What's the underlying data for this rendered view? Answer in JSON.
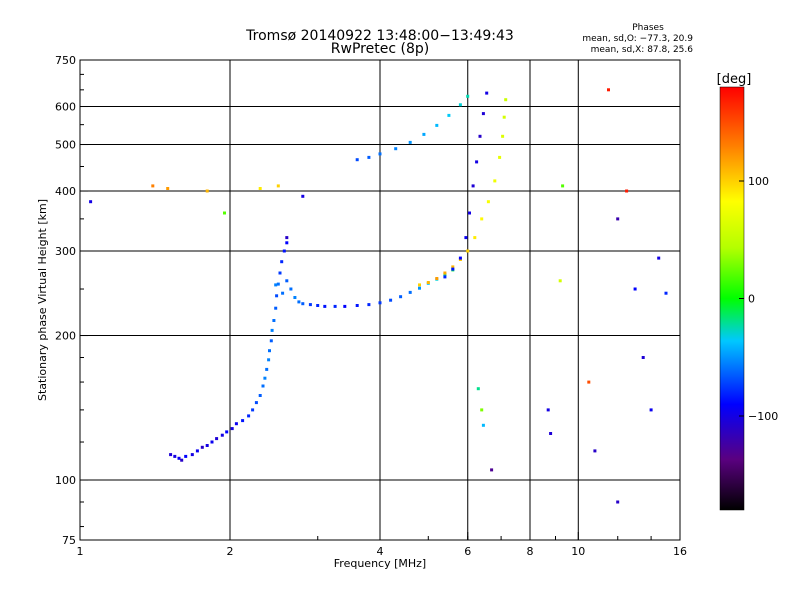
{
  "chart_data": {
    "type": "scatter",
    "title": "Tromsø 20140922 13:48:00−13:49:43",
    "subtitle": "RwPretec (8p)",
    "stats": {
      "heading": "Phases",
      "line1": "mean, sd,O: −77.3, 20.9",
      "line2": "mean, sd,X:  87.8, 25.6"
    },
    "xlabel": "Frequency [MHz]",
    "ylabel": "Stationary phase Virtual Height [km]",
    "x_scale": "log",
    "y_scale": "log",
    "xlim": [
      1,
      16
    ],
    "ylim": [
      75,
      750
    ],
    "grid": true,
    "x_ticks": [
      {
        "v": 1,
        "label": "1"
      },
      {
        "v": 2,
        "label": "2"
      },
      {
        "v": 4,
        "label": "4"
      },
      {
        "v": 6,
        "label": "6"
      },
      {
        "v": 8,
        "label": "8"
      },
      {
        "v": 10,
        "label": "10"
      },
      {
        "v": 16,
        "label": "16"
      }
    ],
    "y_ticks": [
      {
        "v": 75,
        "label": "75"
      },
      {
        "v": 100,
        "label": "100"
      },
      {
        "v": 200,
        "label": "200"
      },
      {
        "v": 300,
        "label": "300"
      },
      {
        "v": 400,
        "label": "400"
      },
      {
        "v": 500,
        "label": "500"
      },
      {
        "v": 600,
        "label": "600"
      },
      {
        "v": 750,
        "label": "750"
      }
    ],
    "colorbar": {
      "label": "[deg]",
      "min": -180,
      "max": 180,
      "ticks": [
        {
          "v": 100,
          "label": "100"
        },
        {
          "v": 0,
          "label": "0"
        },
        {
          "v": -100,
          "label": "−100"
        }
      ]
    },
    "series": [
      {
        "points": [
          [
            1.52,
            113,
            -105
          ],
          [
            1.55,
            112,
            -100
          ],
          [
            1.58,
            111,
            -95
          ],
          [
            1.6,
            110,
            -110
          ],
          [
            1.63,
            112,
            -90
          ],
          [
            1.68,
            113,
            -100
          ],
          [
            1.72,
            115,
            -95
          ],
          [
            1.76,
            117,
            -110
          ],
          [
            1.8,
            118,
            -100
          ],
          [
            1.84,
            120,
            -95
          ],
          [
            1.88,
            122,
            -105
          ],
          [
            1.93,
            124,
            -100
          ],
          [
            1.97,
            126,
            -90
          ],
          [
            2.02,
            128,
            -100
          ],
          [
            2.06,
            131,
            -95
          ],
          [
            2.12,
            133,
            -85
          ],
          [
            2.18,
            136,
            -80
          ],
          [
            2.22,
            140,
            -75
          ],
          [
            2.26,
            145,
            -70
          ],
          [
            2.3,
            150,
            -65
          ],
          [
            2.33,
            157,
            -60
          ],
          [
            2.35,
            163,
            -55
          ],
          [
            2.37,
            170,
            -60
          ],
          [
            2.39,
            178,
            -55
          ],
          [
            2.4,
            186,
            -60
          ],
          [
            2.42,
            195,
            -65
          ],
          [
            2.43,
            205,
            -55
          ],
          [
            2.45,
            215,
            -60
          ],
          [
            2.47,
            228,
            -65
          ],
          [
            2.48,
            242,
            -70
          ],
          [
            2.5,
            256,
            -60
          ],
          [
            2.52,
            270,
            -75
          ],
          [
            2.54,
            285,
            -80
          ],
          [
            2.57,
            300,
            -85
          ],
          [
            2.6,
            312,
            -90
          ],
          [
            2.47,
            255,
            -55
          ],
          [
            2.55,
            245,
            -60
          ],
          [
            2.6,
            260,
            -65
          ],
          [
            2.65,
            250,
            -60
          ],
          [
            2.7,
            240,
            -55
          ],
          [
            2.75,
            235,
            -60
          ],
          [
            2.8,
            233,
            -65
          ],
          [
            2.9,
            232,
            -75
          ],
          [
            3.0,
            231,
            -80
          ],
          [
            3.1,
            230,
            -85
          ],
          [
            3.25,
            230,
            -80
          ],
          [
            3.4,
            230,
            -90
          ],
          [
            3.6,
            231,
            -85
          ],
          [
            3.8,
            232,
            -80
          ],
          [
            4.0,
            234,
            -75
          ],
          [
            4.2,
            237,
            -70
          ],
          [
            4.4,
            241,
            -65
          ],
          [
            4.6,
            246,
            -60
          ],
          [
            4.8,
            251,
            -50
          ],
          [
            5.0,
            257,
            -40
          ],
          [
            5.2,
            262,
            -30
          ],
          [
            5.4,
            268,
            -20
          ],
          [
            5.6,
            274,
            -10
          ],
          [
            4.8,
            255,
            100
          ],
          [
            5.0,
            258,
            110
          ],
          [
            5.2,
            263,
            120
          ],
          [
            5.4,
            270,
            115
          ],
          [
            5.6,
            278,
            110
          ],
          [
            5.8,
            288,
            105
          ],
          [
            6.0,
            300,
            100
          ],
          [
            6.2,
            320,
            90
          ],
          [
            6.4,
            350,
            85
          ],
          [
            6.6,
            380,
            80
          ],
          [
            6.8,
            420,
            75
          ],
          [
            6.95,
            470,
            70
          ],
          [
            7.05,
            520,
            65
          ],
          [
            7.1,
            570,
            60
          ],
          [
            7.15,
            620,
            55
          ],
          [
            5.4,
            265,
            -80
          ],
          [
            5.6,
            275,
            -85
          ],
          [
            5.8,
            290,
            -90
          ],
          [
            5.95,
            320,
            -95
          ],
          [
            6.05,
            360,
            -100
          ],
          [
            6.15,
            410,
            -105
          ],
          [
            6.25,
            460,
            -100
          ],
          [
            6.35,
            520,
            -110
          ],
          [
            6.45,
            580,
            -105
          ],
          [
            6.55,
            640,
            -100
          ],
          [
            3.6,
            465,
            -70
          ],
          [
            3.8,
            470,
            -65
          ],
          [
            4.0,
            478,
            -60
          ],
          [
            4.3,
            490,
            -55
          ],
          [
            4.6,
            505,
            -50
          ],
          [
            4.9,
            525,
            -45
          ],
          [
            5.2,
            548,
            -40
          ],
          [
            5.5,
            575,
            -35
          ],
          [
            5.8,
            605,
            -30
          ],
          [
            6.0,
            630,
            -25
          ],
          [
            1.05,
            380,
            -100
          ],
          [
            1.4,
            410,
            130
          ],
          [
            1.5,
            405,
            120
          ],
          [
            1.8,
            400,
            110
          ],
          [
            2.3,
            405,
            90
          ],
          [
            2.5,
            410,
            100
          ],
          [
            1.95,
            360,
            20
          ],
          [
            2.6,
            320,
            -110
          ],
          [
            2.8,
            390,
            -100
          ],
          [
            8.7,
            140,
            -100
          ],
          [
            8.8,
            125,
            -105
          ],
          [
            9.2,
            260,
            60
          ],
          [
            9.3,
            410,
            20
          ],
          [
            10.5,
            160,
            150
          ],
          [
            10.8,
            115,
            -110
          ],
          [
            11.5,
            650,
            170
          ],
          [
            12.0,
            350,
            -120
          ],
          [
            12.5,
            400,
            170
          ],
          [
            13.0,
            250,
            -90
          ],
          [
            13.5,
            180,
            -105
          ],
          [
            14.0,
            140,
            -95
          ],
          [
            14.5,
            290,
            -100
          ],
          [
            15.0,
            245,
            -80
          ],
          [
            12.0,
            90,
            -110
          ],
          [
            6.3,
            155,
            -20
          ],
          [
            6.4,
            140,
            30
          ],
          [
            6.7,
            105,
            -130
          ],
          [
            6.45,
            130,
            -40
          ]
        ]
      }
    ]
  }
}
